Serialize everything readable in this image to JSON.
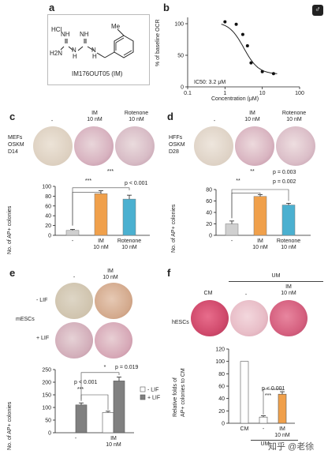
{
  "panels": {
    "a": {
      "label": "a",
      "hcl": "HCl",
      "nh1": "NH",
      "nh2": "NH",
      "h2n": "H2N",
      "n1": "N",
      "n2": "N",
      "h1": "H",
      "h2": "H",
      "me": "Me",
      "compound": "IM176OUT05 (IM)"
    },
    "b": {
      "label": "b",
      "ylabel": "% of baseline OCR",
      "xlabel": "Concentration (μM)",
      "annotation": "IC50: 3.2 μM",
      "yticks": [
        "0",
        "50",
        "100"
      ],
      "xticks": [
        "0.1",
        "1",
        "10",
        "100"
      ]
    },
    "c": {
      "label": "c",
      "row_label": [
        "MEFs",
        "OSKM",
        "D14"
      ],
      "col_dash": "-",
      "col_im": [
        "IM",
        "10 nM"
      ],
      "col_rot": [
        "Rotenone",
        "10 nM"
      ],
      "sig1": "***",
      "sig2": "***",
      "pval": "p < 0.001",
      "ylabel": "No. of AP+ colonies",
      "yticks": [
        "0",
        "20",
        "40",
        "60",
        "80",
        "100"
      ],
      "xcats": [
        "-",
        "IM\n10 nM",
        "Rotenone\n10 nM"
      ]
    },
    "d": {
      "label": "d",
      "row_label": [
        "HFFs",
        "OSKM",
        "D28"
      ],
      "col_dash": "-",
      "col_im": [
        "IM",
        "10 nM"
      ],
      "col_rot": [
        "Rotenone",
        "10 nM"
      ],
      "sig1": "**",
      "sig2": "**",
      "pval1": "p = 0.003",
      "pval2": "p = 0.002",
      "ylabel": "No. of AP+ colonies",
      "yticks": [
        "0",
        "20",
        "40",
        "60",
        "80"
      ]
    },
    "e": {
      "label": "e",
      "col_dash": "-",
      "col_im": [
        "IM",
        "10 nM"
      ],
      "row_minus": "- LIF",
      "row_plus": "+ LIF",
      "side_label": "mESCs",
      "sig_star": "*",
      "p1": "p = 0.019",
      "p2": "p < 0.001",
      "sig3": "***",
      "ylabel": "No. of AP+ colonies",
      "yticks": [
        "0",
        "50",
        "100",
        "150",
        "200",
        "250"
      ],
      "legend": [
        "- LIF",
        "+ LIF"
      ],
      "xcats": [
        "-",
        "IM"
      ],
      "xsub": "10 nM"
    },
    "f": {
      "label": "f",
      "um": "UM",
      "cm": "CM",
      "col_dash": "-",
      "col_im": [
        "IM",
        "10 nM"
      ],
      "side_label": "hESCs",
      "ylabel": [
        "Relative folds of",
        "AP+ colonies to CM"
      ],
      "yticks": [
        "0",
        "20",
        "40",
        "60",
        "80",
        "100",
        "120"
      ],
      "pval": "p < 0.001",
      "sig": "***",
      "xcats": [
        "CM",
        "-",
        "IM"
      ],
      "xsub": "10 nM",
      "um_bottom": "UM"
    }
  },
  "watermark": "知乎 @老徐",
  "corner_icon": "gender-female-icon",
  "chart_data": [
    {
      "type": "scatter",
      "panel": "b",
      "xlabel": "Concentration (μM)",
      "ylabel": "% of baseline OCR",
      "xscale": "log",
      "xlim": [
        0.1,
        100
      ],
      "ylim": [
        0,
        110
      ],
      "x": [
        1,
        2,
        3,
        4,
        5,
        10,
        20
      ],
      "y": [
        103,
        99,
        83,
        65,
        38,
        24,
        21
      ],
      "fit": {
        "type": "sigmoid",
        "ic50": 3.2,
        "top": 103,
        "bottom": 20
      },
      "annotation": "IC50: 3.2 μM"
    },
    {
      "type": "bar",
      "panel": "c",
      "categories": [
        "-",
        "IM 10 nM",
        "Rotenone 10 nM"
      ],
      "values": [
        10,
        85,
        74
      ],
      "errors": [
        2,
        6,
        8
      ],
      "colors": [
        "#d0d0d0",
        "#f0a04b",
        "#4bb0d0"
      ],
      "ylabel": "No. of AP+ colonies",
      "ylim": [
        0,
        100
      ]
    },
    {
      "type": "bar",
      "panel": "d",
      "categories": [
        "-",
        "IM 10 nM",
        "Rotenone 10 nM"
      ],
      "values": [
        20,
        68,
        53
      ],
      "errors": [
        5,
        3,
        3
      ],
      "colors": [
        "#d0d0d0",
        "#f0a04b",
        "#4bb0d0"
      ],
      "ylabel": "No. of AP+ colonies",
      "ylim": [
        0,
        80
      ]
    },
    {
      "type": "bar",
      "panel": "e",
      "categories": [
        "-",
        "IM"
      ],
      "series": [
        {
          "name": "- LIF",
          "values": [
            0,
            80
          ],
          "errors": [
            0,
            5
          ],
          "color": "#ffffff"
        },
        {
          "name": "+ LIF",
          "values": [
            110,
            205
          ],
          "errors": [
            8,
            15
          ],
          "color": "#808080"
        }
      ],
      "ylabel": "No. of AP+ colonies",
      "ylim": [
        0,
        250
      ]
    },
    {
      "type": "bar",
      "panel": "f",
      "categories": [
        "CM",
        "-",
        "IM"
      ],
      "values": [
        100,
        10,
        47
      ],
      "errors": [
        0,
        2,
        4
      ],
      "colors": [
        "#ffffff",
        "#ffffff",
        "#f0a04b"
      ],
      "ylabel": "Relative folds of AP+ colonies to CM",
      "ylim": [
        0,
        120
      ]
    }
  ]
}
